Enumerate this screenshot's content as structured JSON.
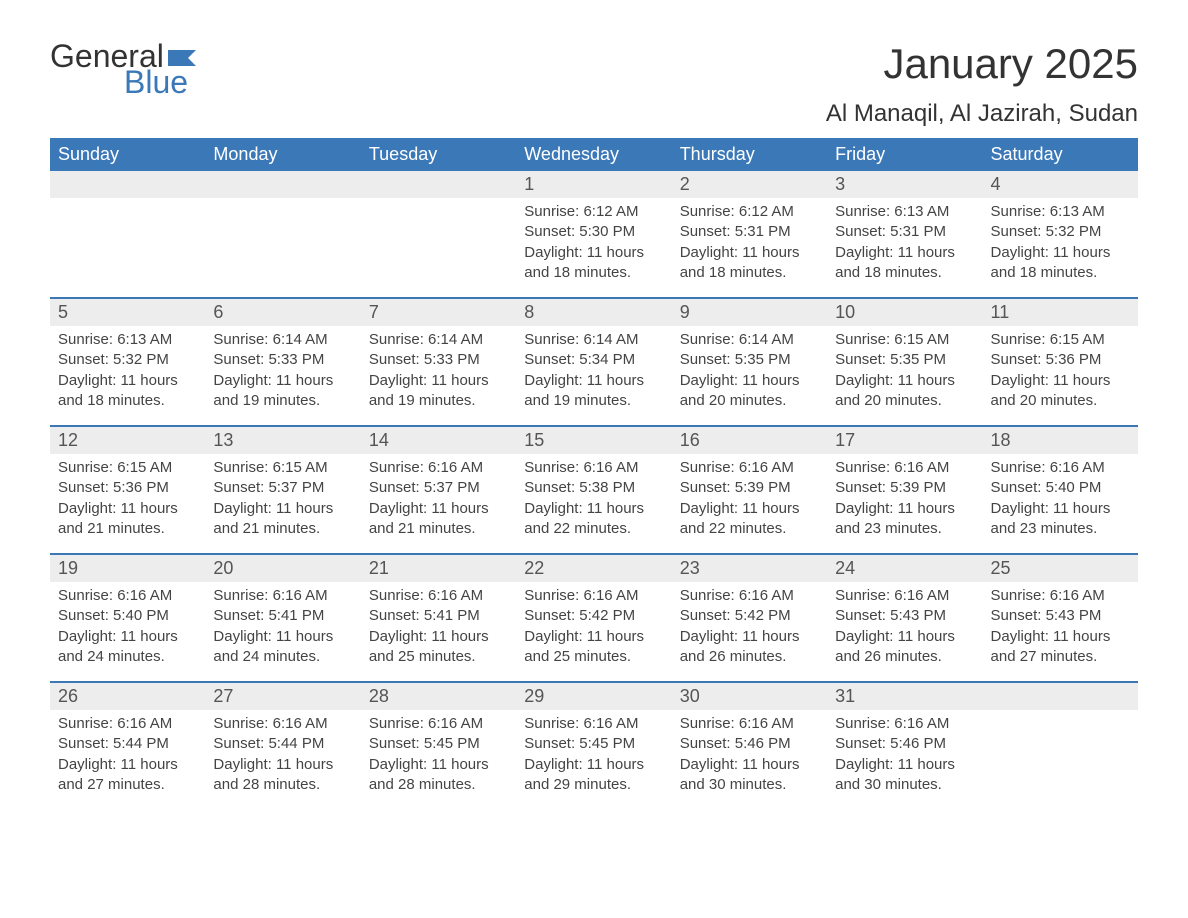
{
  "logo": {
    "text_general": "General",
    "text_blue": "Blue",
    "flag_color": "#3b78b8"
  },
  "title": "January 2025",
  "location": "Al Manaqil, Al Jazirah, Sudan",
  "colors": {
    "header_bg": "#3b78b8",
    "header_text": "#ffffff",
    "daynum_bg": "#ededed",
    "week_border": "#3b78b8",
    "body_text": "#444444",
    "title_text": "#333333"
  },
  "fonts": {
    "title_size_pt": 32,
    "location_size_pt": 18,
    "weekday_size_pt": 13,
    "daynum_size_pt": 13,
    "body_size_pt": 11
  },
  "weekdays": [
    "Sunday",
    "Monday",
    "Tuesday",
    "Wednesday",
    "Thursday",
    "Friday",
    "Saturday"
  ],
  "weeks": [
    [
      {
        "n": "",
        "sunrise": "",
        "sunset": "",
        "daylight": ""
      },
      {
        "n": "",
        "sunrise": "",
        "sunset": "",
        "daylight": ""
      },
      {
        "n": "",
        "sunrise": "",
        "sunset": "",
        "daylight": ""
      },
      {
        "n": "1",
        "sunrise": "Sunrise: 6:12 AM",
        "sunset": "Sunset: 5:30 PM",
        "daylight": "Daylight: 11 hours and 18 minutes."
      },
      {
        "n": "2",
        "sunrise": "Sunrise: 6:12 AM",
        "sunset": "Sunset: 5:31 PM",
        "daylight": "Daylight: 11 hours and 18 minutes."
      },
      {
        "n": "3",
        "sunrise": "Sunrise: 6:13 AM",
        "sunset": "Sunset: 5:31 PM",
        "daylight": "Daylight: 11 hours and 18 minutes."
      },
      {
        "n": "4",
        "sunrise": "Sunrise: 6:13 AM",
        "sunset": "Sunset: 5:32 PM",
        "daylight": "Daylight: 11 hours and 18 minutes."
      }
    ],
    [
      {
        "n": "5",
        "sunrise": "Sunrise: 6:13 AM",
        "sunset": "Sunset: 5:32 PM",
        "daylight": "Daylight: 11 hours and 18 minutes."
      },
      {
        "n": "6",
        "sunrise": "Sunrise: 6:14 AM",
        "sunset": "Sunset: 5:33 PM",
        "daylight": "Daylight: 11 hours and 19 minutes."
      },
      {
        "n": "7",
        "sunrise": "Sunrise: 6:14 AM",
        "sunset": "Sunset: 5:33 PM",
        "daylight": "Daylight: 11 hours and 19 minutes."
      },
      {
        "n": "8",
        "sunrise": "Sunrise: 6:14 AM",
        "sunset": "Sunset: 5:34 PM",
        "daylight": "Daylight: 11 hours and 19 minutes."
      },
      {
        "n": "9",
        "sunrise": "Sunrise: 6:14 AM",
        "sunset": "Sunset: 5:35 PM",
        "daylight": "Daylight: 11 hours and 20 minutes."
      },
      {
        "n": "10",
        "sunrise": "Sunrise: 6:15 AM",
        "sunset": "Sunset: 5:35 PM",
        "daylight": "Daylight: 11 hours and 20 minutes."
      },
      {
        "n": "11",
        "sunrise": "Sunrise: 6:15 AM",
        "sunset": "Sunset: 5:36 PM",
        "daylight": "Daylight: 11 hours and 20 minutes."
      }
    ],
    [
      {
        "n": "12",
        "sunrise": "Sunrise: 6:15 AM",
        "sunset": "Sunset: 5:36 PM",
        "daylight": "Daylight: 11 hours and 21 minutes."
      },
      {
        "n": "13",
        "sunrise": "Sunrise: 6:15 AM",
        "sunset": "Sunset: 5:37 PM",
        "daylight": "Daylight: 11 hours and 21 minutes."
      },
      {
        "n": "14",
        "sunrise": "Sunrise: 6:16 AM",
        "sunset": "Sunset: 5:37 PM",
        "daylight": "Daylight: 11 hours and 21 minutes."
      },
      {
        "n": "15",
        "sunrise": "Sunrise: 6:16 AM",
        "sunset": "Sunset: 5:38 PM",
        "daylight": "Daylight: 11 hours and 22 minutes."
      },
      {
        "n": "16",
        "sunrise": "Sunrise: 6:16 AM",
        "sunset": "Sunset: 5:39 PM",
        "daylight": "Daylight: 11 hours and 22 minutes."
      },
      {
        "n": "17",
        "sunrise": "Sunrise: 6:16 AM",
        "sunset": "Sunset: 5:39 PM",
        "daylight": "Daylight: 11 hours and 23 minutes."
      },
      {
        "n": "18",
        "sunrise": "Sunrise: 6:16 AM",
        "sunset": "Sunset: 5:40 PM",
        "daylight": "Daylight: 11 hours and 23 minutes."
      }
    ],
    [
      {
        "n": "19",
        "sunrise": "Sunrise: 6:16 AM",
        "sunset": "Sunset: 5:40 PM",
        "daylight": "Daylight: 11 hours and 24 minutes."
      },
      {
        "n": "20",
        "sunrise": "Sunrise: 6:16 AM",
        "sunset": "Sunset: 5:41 PM",
        "daylight": "Daylight: 11 hours and 24 minutes."
      },
      {
        "n": "21",
        "sunrise": "Sunrise: 6:16 AM",
        "sunset": "Sunset: 5:41 PM",
        "daylight": "Daylight: 11 hours and 25 minutes."
      },
      {
        "n": "22",
        "sunrise": "Sunrise: 6:16 AM",
        "sunset": "Sunset: 5:42 PM",
        "daylight": "Daylight: 11 hours and 25 minutes."
      },
      {
        "n": "23",
        "sunrise": "Sunrise: 6:16 AM",
        "sunset": "Sunset: 5:42 PM",
        "daylight": "Daylight: 11 hours and 26 minutes."
      },
      {
        "n": "24",
        "sunrise": "Sunrise: 6:16 AM",
        "sunset": "Sunset: 5:43 PM",
        "daylight": "Daylight: 11 hours and 26 minutes."
      },
      {
        "n": "25",
        "sunrise": "Sunrise: 6:16 AM",
        "sunset": "Sunset: 5:43 PM",
        "daylight": "Daylight: 11 hours and 27 minutes."
      }
    ],
    [
      {
        "n": "26",
        "sunrise": "Sunrise: 6:16 AM",
        "sunset": "Sunset: 5:44 PM",
        "daylight": "Daylight: 11 hours and 27 minutes."
      },
      {
        "n": "27",
        "sunrise": "Sunrise: 6:16 AM",
        "sunset": "Sunset: 5:44 PM",
        "daylight": "Daylight: 11 hours and 28 minutes."
      },
      {
        "n": "28",
        "sunrise": "Sunrise: 6:16 AM",
        "sunset": "Sunset: 5:45 PM",
        "daylight": "Daylight: 11 hours and 28 minutes."
      },
      {
        "n": "29",
        "sunrise": "Sunrise: 6:16 AM",
        "sunset": "Sunset: 5:45 PM",
        "daylight": "Daylight: 11 hours and 29 minutes."
      },
      {
        "n": "30",
        "sunrise": "Sunrise: 6:16 AM",
        "sunset": "Sunset: 5:46 PM",
        "daylight": "Daylight: 11 hours and 30 minutes."
      },
      {
        "n": "31",
        "sunrise": "Sunrise: 6:16 AM",
        "sunset": "Sunset: 5:46 PM",
        "daylight": "Daylight: 11 hours and 30 minutes."
      },
      {
        "n": "",
        "sunrise": "",
        "sunset": "",
        "daylight": ""
      }
    ]
  ]
}
